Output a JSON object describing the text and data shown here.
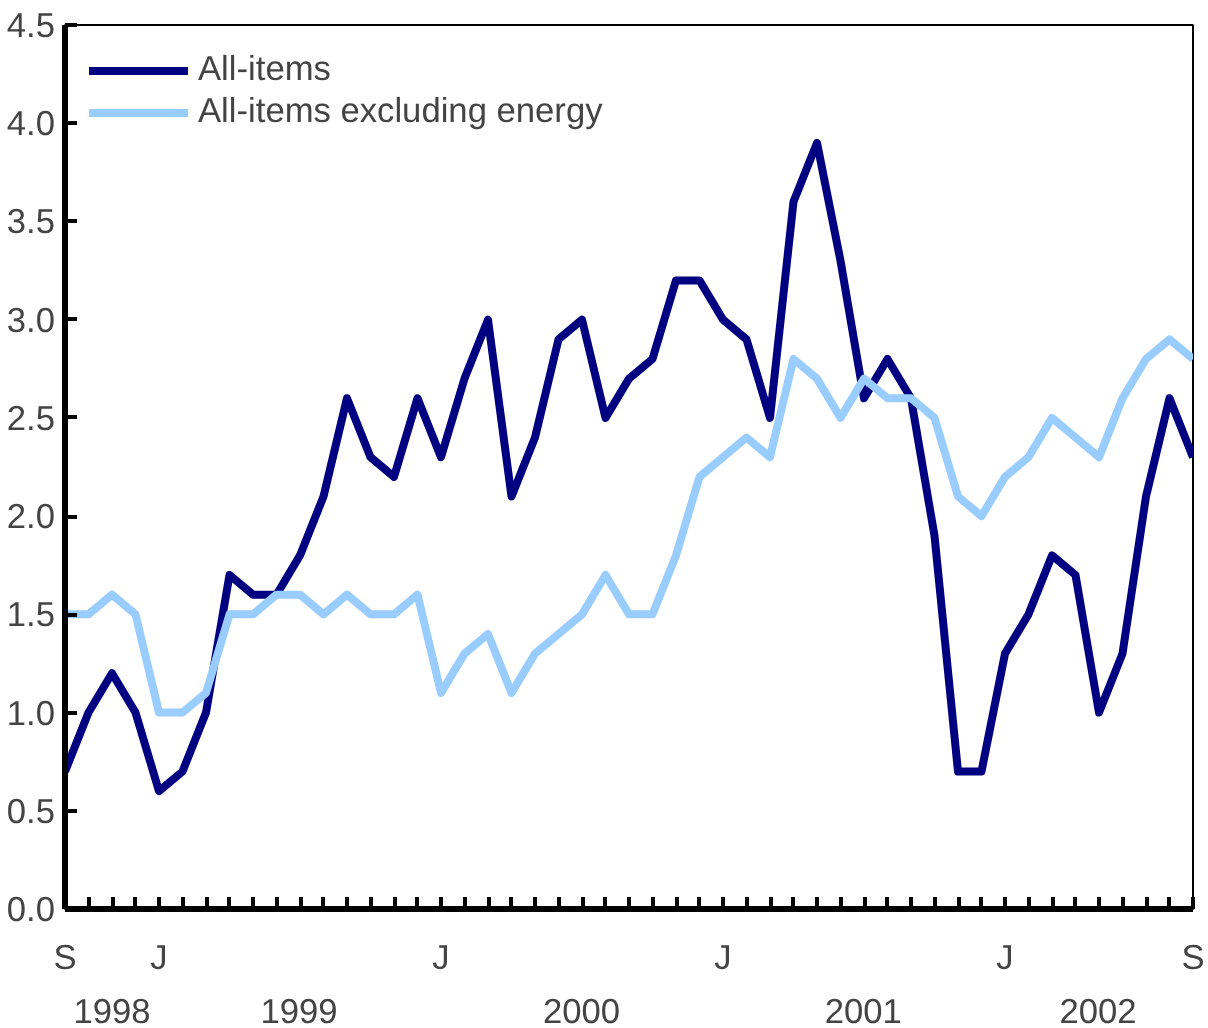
{
  "chart_data": {
    "type": "line",
    "categories": [
      "S",
      null,
      null,
      null,
      "J",
      null,
      null,
      null,
      null,
      null,
      null,
      null,
      null,
      null,
      null,
      null,
      "J",
      null,
      null,
      null,
      null,
      null,
      null,
      null,
      null,
      null,
      null,
      null,
      "J",
      null,
      null,
      null,
      null,
      null,
      null,
      null,
      null,
      null,
      null,
      null,
      "J",
      null,
      null,
      null,
      null,
      null,
      null,
      null,
      "S"
    ],
    "series": [
      {
        "name": "All-items",
        "color": "#000080",
        "values": [
          0.7,
          1.0,
          1.2,
          1.0,
          0.6,
          0.7,
          1.0,
          1.7,
          1.6,
          1.6,
          1.8,
          2.1,
          2.6,
          2.3,
          2.2,
          2.6,
          2.3,
          2.7,
          3.0,
          2.1,
          2.4,
          2.9,
          3.0,
          2.5,
          2.7,
          2.8,
          3.2,
          3.2,
          3.0,
          2.9,
          2.5,
          3.6,
          3.9,
          3.3,
          2.6,
          2.8,
          2.6,
          1.9,
          0.7,
          0.7,
          1.3,
          1.5,
          1.8,
          1.7,
          1.0,
          1.3,
          2.1,
          2.6,
          2.3
        ]
      },
      {
        "name": "All-items excluding energy",
        "color": "#99ccff",
        "values": [
          1.5,
          1.5,
          1.6,
          1.5,
          1.0,
          1.0,
          1.1,
          1.5,
          1.5,
          1.6,
          1.6,
          1.5,
          1.6,
          1.5,
          1.5,
          1.6,
          1.1,
          1.3,
          1.4,
          1.1,
          1.3,
          1.4,
          1.5,
          1.7,
          1.5,
          1.5,
          1.8,
          2.2,
          2.3,
          2.4,
          2.3,
          2.8,
          2.7,
          2.5,
          2.7,
          2.6,
          2.6,
          2.5,
          2.1,
          2.0,
          2.2,
          2.3,
          2.5,
          2.4,
          2.3,
          2.6,
          2.8,
          2.9,
          2.8
        ]
      }
    ],
    "x2lim": [
      "1998-09",
      "2002-09"
    ],
    "x2ticks": [
      {
        "value": "1998-11",
        "label": "1998"
      },
      {
        "value": "1999-07",
        "label": "1999"
      },
      {
        "value": "2000-07",
        "label": "2000"
      },
      {
        "value": "2001-07",
        "label": "2001"
      },
      {
        "value": "2002-05",
        "label": "2002"
      }
    ],
    "ylim": [
      0,
      4.5
    ],
    "yticks": [
      {
        "value": 0,
        "label": "0.0"
      },
      {
        "value": 0.5,
        "label": "0.5"
      },
      {
        "value": 1,
        "label": "1.0"
      },
      {
        "value": 1.5,
        "label": "1.5"
      },
      {
        "value": 2,
        "label": "2.0"
      },
      {
        "value": 2.5,
        "label": "2.5"
      },
      {
        "value": 3,
        "label": "3.0"
      },
      {
        "value": 3.5,
        "label": "3.5"
      },
      {
        "value": 4,
        "label": "4.0"
      },
      {
        "value": 4.5,
        "label": "4.5"
      }
    ],
    "grid": false,
    "legend": "top left",
    "line_style": "solid"
  }
}
